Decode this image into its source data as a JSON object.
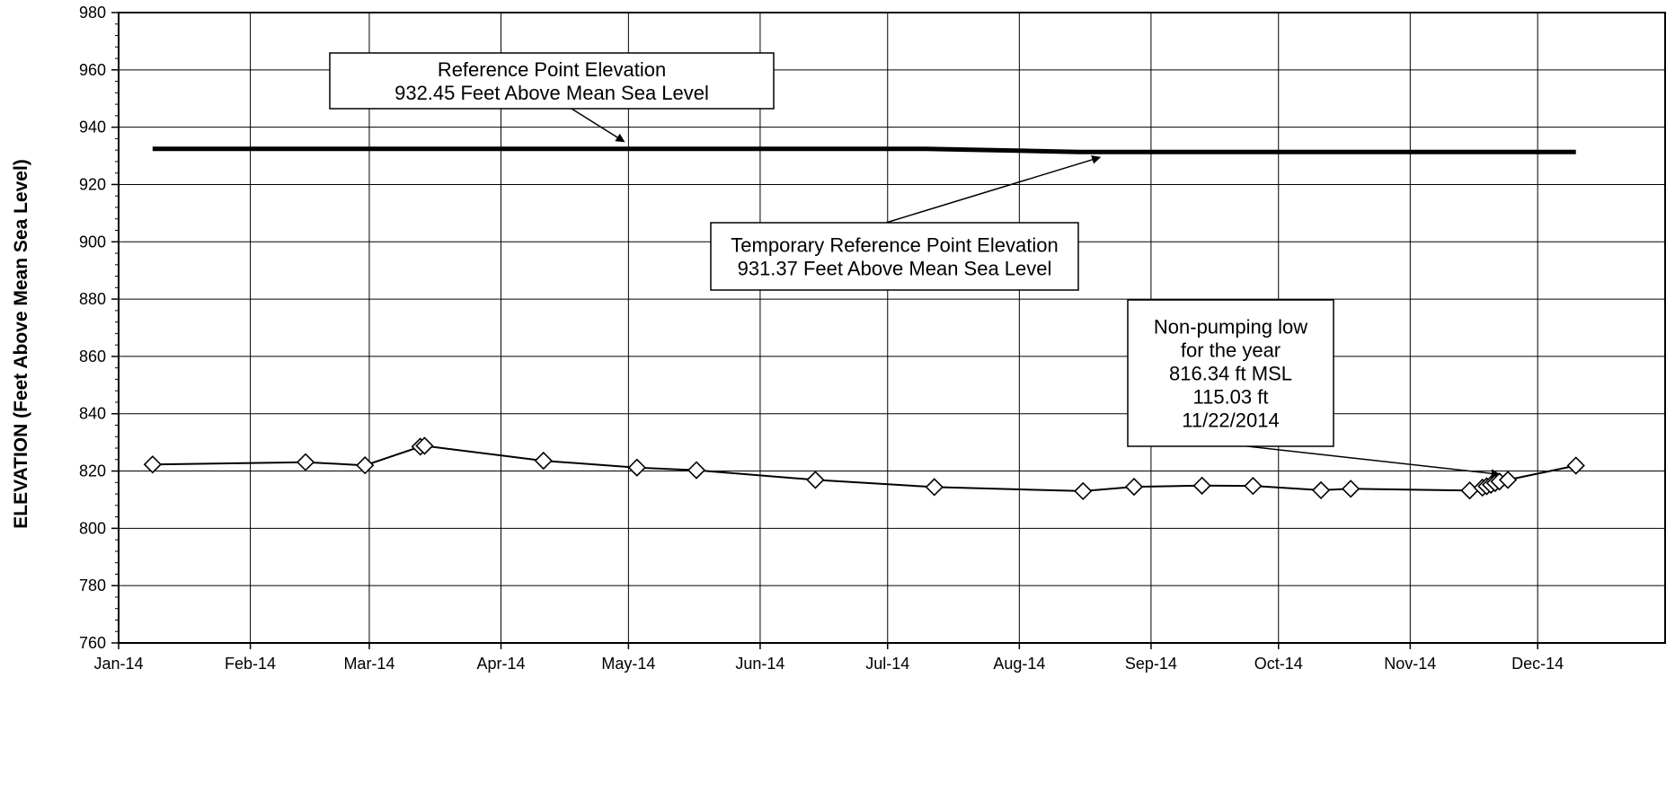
{
  "chart_data": {
    "type": "line",
    "title": "",
    "xlabel": "",
    "ylabel": "ELEVATION (Feet Above Mean Sea Level)",
    "ylim": [
      760,
      980
    ],
    "y_ticks": [
      760,
      780,
      800,
      820,
      840,
      860,
      880,
      900,
      920,
      940,
      960,
      980
    ],
    "xlim": [
      "2014-01-01",
      "2014-12-31"
    ],
    "x_ticks": [
      {
        "label": "Jan-14",
        "date": "2014-01-01"
      },
      {
        "label": "Feb-14",
        "date": "2014-02-01"
      },
      {
        "label": "Mar-14",
        "date": "2014-03-01"
      },
      {
        "label": "Apr-14",
        "date": "2014-04-01"
      },
      {
        "label": "May-14",
        "date": "2014-05-01"
      },
      {
        "label": "Jun-14",
        "date": "2014-06-01"
      },
      {
        "label": "Jul-14",
        "date": "2014-07-01"
      },
      {
        "label": "Aug-14",
        "date": "2014-08-01"
      },
      {
        "label": "Sep-14",
        "date": "2014-09-01"
      },
      {
        "label": "Oct-14",
        "date": "2014-10-01"
      },
      {
        "label": "Nov-14",
        "date": "2014-11-01"
      },
      {
        "label": "Dec-14",
        "date": "2014-12-01"
      }
    ],
    "grid": true,
    "series": [
      {
        "name": "",
        "style": "line",
        "color": "#000000",
        "points": [
          {
            "x": "2014-01-09",
            "y": 932.45
          },
          {
            "x": "2014-07-10",
            "y": 932.45
          },
          {
            "x": "2014-08-15",
            "y": 931.37
          },
          {
            "x": "2014-12-10",
            "y": 931.37
          }
        ]
      },
      {
        "name": "",
        "style": "line-diamond",
        "color": "#000000",
        "points": [
          {
            "x": "2014-01-09",
            "y": 822.3
          },
          {
            "x": "2014-02-14",
            "y": 823.1
          },
          {
            "x": "2014-02-28",
            "y": 822.0
          },
          {
            "x": "2014-03-13",
            "y": 828.5
          },
          {
            "x": "2014-03-14",
            "y": 828.8
          },
          {
            "x": "2014-04-11",
            "y": 823.6
          },
          {
            "x": "2014-05-03",
            "y": 821.2
          },
          {
            "x": "2014-05-17",
            "y": 820.3
          },
          {
            "x": "2014-06-14",
            "y": 816.9
          },
          {
            "x": "2014-07-12",
            "y": 814.4
          },
          {
            "x": "2014-08-16",
            "y": 813.0
          },
          {
            "x": "2014-08-28",
            "y": 814.5
          },
          {
            "x": "2014-09-13",
            "y": 814.9
          },
          {
            "x": "2014-09-25",
            "y": 814.8
          },
          {
            "x": "2014-10-11",
            "y": 813.3
          },
          {
            "x": "2014-10-18",
            "y": 813.8
          },
          {
            "x": "2014-11-15",
            "y": 813.2
          },
          {
            "x": "2014-11-18",
            "y": 814.2
          },
          {
            "x": "2014-11-19",
            "y": 814.7
          },
          {
            "x": "2014-11-20",
            "y": 815.2
          },
          {
            "x": "2014-11-21",
            "y": 815.8
          },
          {
            "x": "2014-11-22",
            "y": 816.34
          },
          {
            "x": "2014-11-24",
            "y": 816.9
          },
          {
            "x": "2014-12-10",
            "y": 821.9
          }
        ]
      }
    ],
    "annotations": [
      {
        "lines": [
          "Reference Point Elevation",
          "932.45 Feet Above Mean Sea Level"
        ],
        "target": {
          "x": "2014-04-30",
          "y": 932.45
        }
      },
      {
        "lines": [
          "Temporary Reference Point Elevation",
          "931.37 Feet Above Mean Sea Level"
        ],
        "target": {
          "x": "2014-08-20",
          "y": 931.37
        }
      },
      {
        "lines": [
          "Non-pumping low",
          "for the year",
          "816.34 ft MSL",
          "115.03 ft",
          "11/22/2014"
        ],
        "target": {
          "x": "2014-11-22",
          "y": 816.34
        }
      }
    ]
  }
}
